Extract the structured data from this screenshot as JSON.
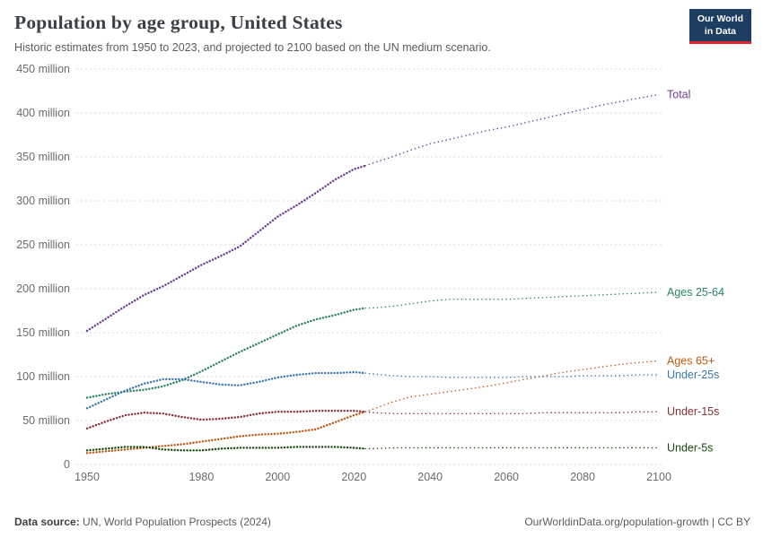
{
  "header": {
    "title": "Population by age group, United States",
    "subtitle": "Historic estimates from 1950 to 2023, and projected to 2100 based on the UN medium scenario.",
    "logo": {
      "line1": "Our World",
      "line2": "in Data",
      "bg_color": "#1D3D63",
      "accent_color": "#E0262C"
    }
  },
  "footer": {
    "source_label": "Data source:",
    "source_text": " UN, World Population Prospects (2024)",
    "credit_text": "OurWorldinData.org/population-growth | CC BY"
  },
  "chart_data": {
    "type": "line",
    "title": "Population by age group, United States",
    "subtitle": "Historic estimates from 1950 to 2023, and projected to 2100 based on the UN medium scenario.",
    "unit": "million",
    "xlim": [
      1950,
      2100
    ],
    "ylim": [
      0,
      450
    ],
    "grid": "dashed-horizontal",
    "legend_position": "right-end-labels",
    "projection_start_year": 2023,
    "xticks": [
      1950,
      1980,
      2000,
      2020,
      2040,
      2060,
      2080,
      2100
    ],
    "yticks": [
      0,
      50,
      100,
      150,
      200,
      250,
      300,
      350,
      400,
      450
    ],
    "ytick_labels": [
      "0",
      "50 million",
      "100 million",
      "150 million",
      "200 million",
      "250 million",
      "300 million",
      "350 million",
      "400 million",
      "450 million"
    ],
    "x": [
      1950,
      1955,
      1960,
      1965,
      1970,
      1975,
      1980,
      1985,
      1990,
      1995,
      2000,
      2005,
      2010,
      2015,
      2020,
      2023,
      2025,
      2030,
      2035,
      2040,
      2045,
      2050,
      2055,
      2060,
      2065,
      2070,
      2075,
      2080,
      2085,
      2090,
      2095,
      2100
    ],
    "series": [
      {
        "name": "Total",
        "color": "#6D3E91",
        "values": [
          152,
          166,
          180,
          193,
          203,
          215,
          227,
          237,
          248,
          265,
          282,
          295,
          309,
          324,
          336,
          340,
          343,
          350,
          358,
          365,
          370,
          375,
          380,
          384,
          389,
          394,
          399,
          404,
          409,
          413,
          417,
          421
        ]
      },
      {
        "name": "Ages 25-64",
        "color": "#2C8465",
        "values": [
          76,
          80,
          83,
          85,
          89,
          96,
          106,
          117,
          128,
          138,
          148,
          158,
          165,
          170,
          176,
          178,
          178,
          180,
          183,
          186,
          188,
          188,
          188,
          188,
          189,
          190,
          191,
          192,
          193,
          194,
          195,
          196
        ]
      },
      {
        "name": "Ages 65+",
        "color": "#BE5915",
        "values": [
          13,
          15,
          17,
          19,
          21,
          23,
          26,
          29,
          32,
          34,
          35,
          37,
          40,
          48,
          56,
          60,
          63,
          71,
          77,
          80,
          83,
          86,
          89,
          93,
          97,
          101,
          105,
          108,
          111,
          114,
          116,
          118
        ]
      },
      {
        "name": "Under-25s",
        "color": "#3C76AB",
        "values": [
          64,
          74,
          84,
          92,
          97,
          97,
          94,
          91,
          90,
          94,
          99,
          102,
          104,
          104,
          105,
          104,
          103,
          101,
          100,
          100,
          99,
          99,
          99,
          99,
          100,
          100,
          100,
          101,
          101,
          101,
          102,
          102
        ]
      },
      {
        "name": "Under-15s",
        "color": "#883039",
        "values": [
          41,
          49,
          56,
          59,
          58,
          54,
          51,
          52,
          54,
          58,
          60,
          60,
          61,
          61,
          61,
          60,
          59,
          58,
          58,
          58,
          58,
          58,
          58,
          58,
          58,
          59,
          59,
          59,
          59,
          59,
          60,
          60
        ]
      },
      {
        "name": "Under-5s",
        "color": "#18470F",
        "values": [
          16,
          18,
          20,
          20,
          17,
          16,
          16,
          18,
          19,
          19,
          19,
          20,
          20,
          20,
          19,
          18,
          18,
          19,
          19,
          19,
          19,
          19,
          19,
          19,
          19,
          19,
          19,
          19,
          19,
          19,
          19,
          19
        ]
      }
    ]
  }
}
